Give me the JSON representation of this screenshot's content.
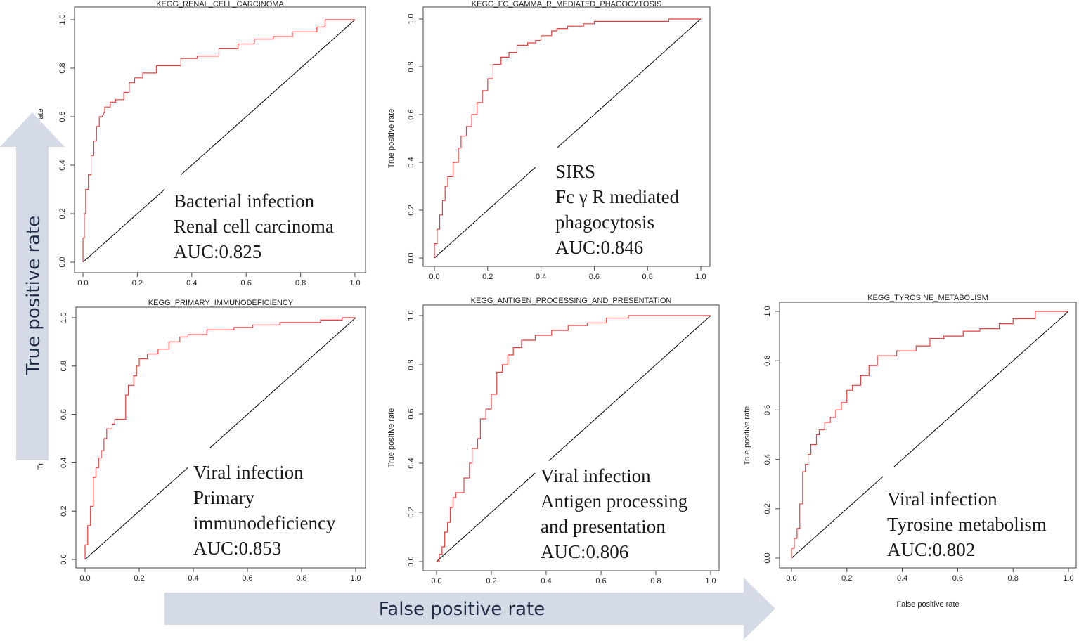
{
  "colors": {
    "roc": "#ee3b3b",
    "diagonal": "#000000",
    "arrow": "#d5dbe6",
    "frame": "#444444"
  },
  "arrows": {
    "y_label": "True positive rate",
    "x_label": "False positive rate"
  },
  "chart_data": [
    {
      "type": "line",
      "title": "KEGG_RENAL_CELL_CARCINOMA",
      "xlabel": "",
      "ylabel": "True positive rate",
      "ylabel_visible_fragment": "ate",
      "xlim": [
        0,
        1
      ],
      "ylim": [
        0,
        1
      ],
      "ticks": [
        "0.0",
        "0.2",
        "0.4",
        "0.6",
        "0.8",
        "1.0"
      ],
      "annotation": [
        "Bacterial infection",
        "Renal cell carcinoma",
        "AUC:0.825"
      ],
      "series": [
        {
          "name": "ROC",
          "x": [
            0,
            0,
            0.005,
            0.005,
            0.01,
            0.01,
            0.02,
            0.02,
            0.03,
            0.03,
            0.04,
            0.04,
            0.05,
            0.05,
            0.06,
            0.06,
            0.07,
            0.08,
            0.08,
            0.1,
            0.1,
            0.12,
            0.12,
            0.15,
            0.15,
            0.17,
            0.17,
            0.19,
            0.19,
            0.22,
            0.22,
            0.27,
            0.27,
            0.36,
            0.36,
            0.42,
            0.42,
            0.5,
            0.5,
            0.57,
            0.57,
            0.63,
            0.63,
            0.7,
            0.7,
            0.77,
            0.77,
            0.86,
            0.86,
            0.89,
            0.89,
            1.0
          ],
          "y": [
            0,
            0.1,
            0.1,
            0.2,
            0.2,
            0.3,
            0.3,
            0.36,
            0.36,
            0.44,
            0.44,
            0.5,
            0.5,
            0.56,
            0.56,
            0.6,
            0.6,
            0.62,
            0.64,
            0.64,
            0.66,
            0.66,
            0.67,
            0.67,
            0.7,
            0.7,
            0.74,
            0.74,
            0.76,
            0.76,
            0.78,
            0.78,
            0.81,
            0.81,
            0.84,
            0.84,
            0.85,
            0.85,
            0.88,
            0.88,
            0.9,
            0.9,
            0.92,
            0.92,
            0.93,
            0.93,
            0.95,
            0.95,
            0.97,
            0.97,
            1.0,
            1.0
          ]
        },
        {
          "name": "diagonal",
          "x": [
            0,
            1
          ],
          "y": [
            0,
            1
          ]
        }
      ]
    },
    {
      "type": "line",
      "title": "KEGG_FC_GAMMA_R_MEDIATED_PHAGOCYTOSIS",
      "xlabel": "",
      "ylabel": "True positive rate",
      "xlim": [
        0,
        1
      ],
      "ylim": [
        0,
        1
      ],
      "ticks": [
        "0.0",
        "0.2",
        "0.4",
        "0.6",
        "0.8",
        "1.0"
      ],
      "annotation": [
        "SIRS",
        "Fc γ R mediated",
        "phagocytosis",
        "AUC:0.846"
      ],
      "series": [
        {
          "name": "ROC",
          "x": [
            0,
            0,
            0.01,
            0.01,
            0.02,
            0.02,
            0.03,
            0.03,
            0.04,
            0.04,
            0.05,
            0.05,
            0.07,
            0.07,
            0.09,
            0.09,
            0.1,
            0.1,
            0.12,
            0.12,
            0.14,
            0.14,
            0.16,
            0.16,
            0.18,
            0.18,
            0.2,
            0.2,
            0.22,
            0.22,
            0.25,
            0.25,
            0.28,
            0.28,
            0.31,
            0.31,
            0.35,
            0.35,
            0.38,
            0.38,
            0.4,
            0.4,
            0.44,
            0.44,
            0.46,
            0.46,
            0.5,
            0.5,
            0.56,
            0.56,
            0.6,
            0.6,
            0.88,
            0.88,
            1.0
          ],
          "y": [
            0,
            0.06,
            0.06,
            0.12,
            0.12,
            0.18,
            0.18,
            0.24,
            0.24,
            0.3,
            0.3,
            0.34,
            0.34,
            0.4,
            0.4,
            0.46,
            0.46,
            0.51,
            0.51,
            0.55,
            0.55,
            0.6,
            0.6,
            0.65,
            0.65,
            0.7,
            0.7,
            0.75,
            0.75,
            0.81,
            0.81,
            0.84,
            0.84,
            0.86,
            0.86,
            0.89,
            0.89,
            0.9,
            0.9,
            0.91,
            0.91,
            0.93,
            0.93,
            0.95,
            0.95,
            0.96,
            0.96,
            0.97,
            0.97,
            0.98,
            0.98,
            0.99,
            0.99,
            1.0,
            1.0
          ]
        },
        {
          "name": "diagonal",
          "x": [
            0,
            1
          ],
          "y": [
            0,
            1
          ]
        }
      ]
    },
    {
      "type": "line",
      "title": "KEGG_PRIMARY_IMMUNODEFICIENCY",
      "xlabel": "",
      "ylabel": "True positive rate",
      "ylabel_visible_fragment": "Tr",
      "xlim": [
        0,
        1
      ],
      "ylim": [
        0,
        1
      ],
      "ticks": [
        "0.0",
        "0.2",
        "0.4",
        "0.6",
        "0.8",
        "1.0"
      ],
      "annotation": [
        "Viral infection",
        "Primary",
        "immunodeficiency",
        "AUC:0.853"
      ],
      "series": [
        {
          "name": "ROC",
          "x": [
            0,
            0,
            0.01,
            0.01,
            0.02,
            0.02,
            0.03,
            0.03,
            0.04,
            0.04,
            0.05,
            0.05,
            0.06,
            0.06,
            0.07,
            0.07,
            0.08,
            0.08,
            0.1,
            0.1,
            0.11,
            0.11,
            0.15,
            0.15,
            0.16,
            0.16,
            0.18,
            0.18,
            0.19,
            0.19,
            0.2,
            0.2,
            0.23,
            0.23,
            0.27,
            0.27,
            0.31,
            0.31,
            0.35,
            0.35,
            0.38,
            0.38,
            0.45,
            0.45,
            0.55,
            0.55,
            0.62,
            0.62,
            0.72,
            0.72,
            0.87,
            0.87,
            0.95,
            0.95,
            1.0
          ],
          "y": [
            0,
            0.06,
            0.06,
            0.14,
            0.14,
            0.22,
            0.22,
            0.34,
            0.34,
            0.38,
            0.38,
            0.42,
            0.42,
            0.45,
            0.45,
            0.5,
            0.5,
            0.54,
            0.54,
            0.56,
            0.56,
            0.58,
            0.58,
            0.68,
            0.68,
            0.72,
            0.72,
            0.76,
            0.76,
            0.8,
            0.8,
            0.83,
            0.83,
            0.85,
            0.85,
            0.87,
            0.87,
            0.9,
            0.9,
            0.92,
            0.92,
            0.93,
            0.93,
            0.95,
            0.95,
            0.96,
            0.96,
            0.97,
            0.97,
            0.98,
            0.98,
            0.99,
            0.99,
            1.0,
            1.0
          ]
        },
        {
          "name": "diagonal",
          "x": [
            0,
            1
          ],
          "y": [
            0,
            1
          ]
        }
      ]
    },
    {
      "type": "line",
      "title": "KEGG_ANTIGEN_PROCESSING_AND_PRESENTATION",
      "xlabel": "",
      "ylabel": "True positive rate",
      "xlim": [
        0,
        1
      ],
      "ylim": [
        0,
        1
      ],
      "ticks": [
        "0.0",
        "0.2",
        "0.4",
        "0.6",
        "0.8",
        "1.0"
      ],
      "annotation": [
        "Viral infection",
        "Antigen processing",
        "and presentation",
        "AUC:0.806"
      ],
      "series": [
        {
          "name": "ROC",
          "x": [
            0,
            0.01,
            0.01,
            0.02,
            0.02,
            0.03,
            0.03,
            0.04,
            0.04,
            0.05,
            0.05,
            0.06,
            0.06,
            0.07,
            0.07,
            0.1,
            0.1,
            0.12,
            0.12,
            0.13,
            0.13,
            0.15,
            0.15,
            0.16,
            0.16,
            0.18,
            0.18,
            0.2,
            0.2,
            0.22,
            0.22,
            0.24,
            0.24,
            0.26,
            0.26,
            0.28,
            0.28,
            0.31,
            0.31,
            0.36,
            0.36,
            0.42,
            0.42,
            0.48,
            0.48,
            0.55,
            0.55,
            0.62,
            0.62,
            0.7,
            0.7,
            1.0
          ],
          "y": [
            0,
            0,
            0.03,
            0.03,
            0.06,
            0.06,
            0.12,
            0.12,
            0.16,
            0.16,
            0.22,
            0.22,
            0.26,
            0.26,
            0.28,
            0.28,
            0.34,
            0.34,
            0.4,
            0.4,
            0.46,
            0.46,
            0.5,
            0.5,
            0.58,
            0.58,
            0.62,
            0.62,
            0.68,
            0.68,
            0.77,
            0.77,
            0.8,
            0.8,
            0.84,
            0.84,
            0.87,
            0.87,
            0.9,
            0.9,
            0.92,
            0.92,
            0.94,
            0.94,
            0.96,
            0.96,
            0.97,
            0.97,
            0.99,
            0.99,
            1.0,
            1.0
          ]
        },
        {
          "name": "diagonal",
          "x": [
            0,
            1
          ],
          "y": [
            0,
            1
          ]
        }
      ]
    },
    {
      "type": "line",
      "title": "KEGG_TYROSINE_METABOLISM",
      "xlabel": "False positive rate",
      "ylabel": "True positive rate",
      "xlim": [
        0,
        1
      ],
      "ylim": [
        0,
        1
      ],
      "ticks": [
        "0.0",
        "0.2",
        "0.4",
        "0.6",
        "0.8",
        "1.0"
      ],
      "annotation": [
        "Viral infection",
        "Tyrosine metabolism",
        "AUC:0.802"
      ],
      "series": [
        {
          "name": "ROC",
          "x": [
            0,
            0,
            0.01,
            0.01,
            0.02,
            0.02,
            0.03,
            0.03,
            0.04,
            0.04,
            0.05,
            0.05,
            0.06,
            0.06,
            0.07,
            0.07,
            0.09,
            0.09,
            0.1,
            0.1,
            0.12,
            0.12,
            0.14,
            0.14,
            0.16,
            0.16,
            0.18,
            0.18,
            0.2,
            0.2,
            0.22,
            0.22,
            0.25,
            0.25,
            0.28,
            0.28,
            0.31,
            0.31,
            0.38,
            0.38,
            0.45,
            0.45,
            0.5,
            0.5,
            0.55,
            0.55,
            0.62,
            0.62,
            0.68,
            0.68,
            0.75,
            0.75,
            0.8,
            0.8,
            0.88,
            0.88,
            1.0
          ],
          "y": [
            0,
            0.04,
            0.04,
            0.08,
            0.08,
            0.12,
            0.12,
            0.22,
            0.22,
            0.35,
            0.35,
            0.38,
            0.38,
            0.42,
            0.42,
            0.46,
            0.46,
            0.5,
            0.5,
            0.52,
            0.52,
            0.55,
            0.55,
            0.57,
            0.57,
            0.6,
            0.6,
            0.63,
            0.63,
            0.68,
            0.68,
            0.7,
            0.7,
            0.74,
            0.74,
            0.78,
            0.78,
            0.82,
            0.82,
            0.84,
            0.84,
            0.86,
            0.86,
            0.89,
            0.89,
            0.9,
            0.9,
            0.92,
            0.92,
            0.93,
            0.93,
            0.95,
            0.95,
            0.97,
            0.97,
            1.0,
            1.0
          ]
        },
        {
          "name": "diagonal",
          "x": [
            0,
            1
          ],
          "y": [
            0,
            1
          ]
        }
      ]
    }
  ]
}
